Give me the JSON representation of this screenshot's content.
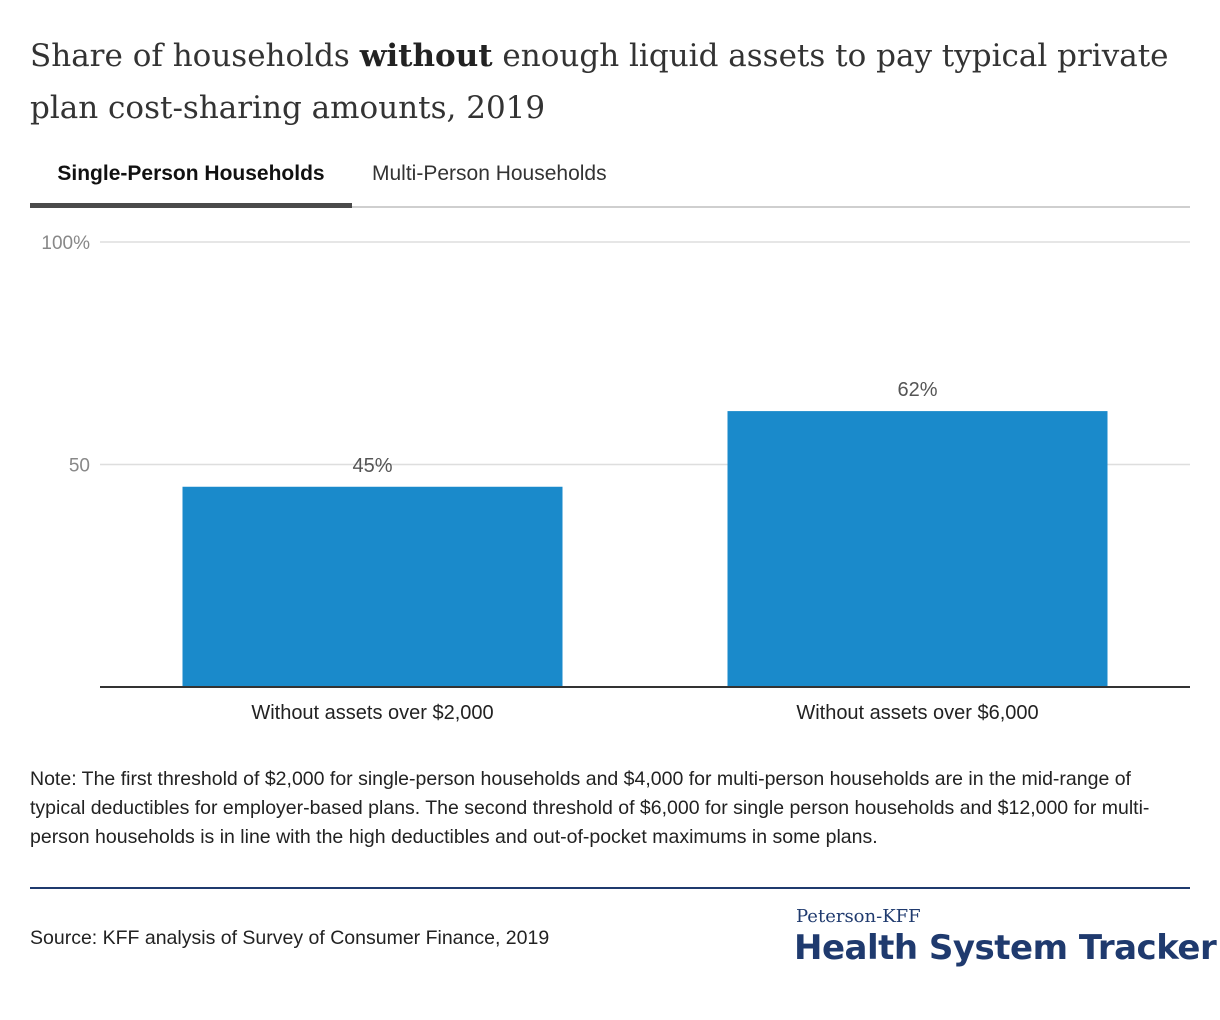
{
  "title": {
    "before": "Share of households ",
    "emphasis": "without",
    "after": " enough liquid assets to pay typical private plan cost-sharing amounts, 2019"
  },
  "tabs": {
    "single": "Single-Person Households",
    "multi": "Multi-Person Households"
  },
  "colors": {
    "bar": "#1a8acb",
    "grid": "#dedede",
    "axis": "#333333",
    "brand": "#1f3a6e"
  },
  "chart_data": {
    "type": "bar",
    "categories": [
      "Without assets over $2,000",
      "Without assets over $6,000"
    ],
    "values": [
      45,
      62
    ],
    "data_labels": [
      "45%",
      "62%"
    ],
    "y_ticks": [
      {
        "value": 50,
        "label": "50"
      },
      {
        "value": 100,
        "label": "100%"
      }
    ],
    "ylim": [
      0,
      100
    ],
    "grid": true,
    "legend": "none"
  },
  "note": "Note: The first threshold of $2,000 for single-person households and $4,000 for multi-person households are in the mid-range of typical deductibles for employer-based plans. The second threshold of $6,000 for single person households and $12,000 for multi-person households is in line with the high deductibles and out-of-pocket maximums in some plans.",
  "source": "Source: KFF analysis of Survey of Consumer Finance, 2019",
  "brand": {
    "top": "Peterson-KFF",
    "main": "Health System Tracker"
  }
}
